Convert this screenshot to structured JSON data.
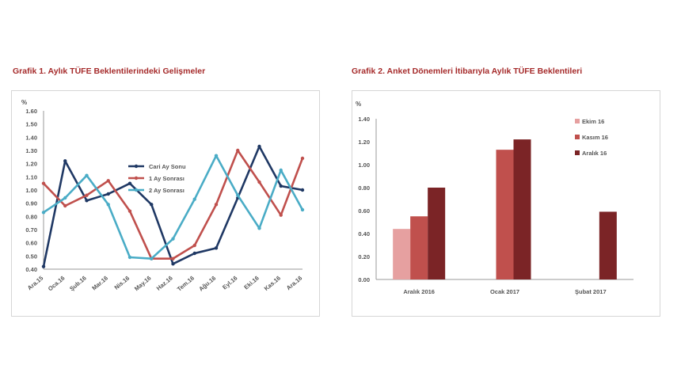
{
  "chart_data": [
    {
      "type": "line",
      "title": "Grafik 1. Aylık TÜFE Beklentilerindeki Gelişmeler",
      "ylabel": "%",
      "ylim": [
        0.4,
        1.6
      ],
      "yticks": [
        "0.40",
        "0.50",
        "0.60",
        "0.70",
        "0.80",
        "0.90",
        "1.00",
        "1.10",
        "1.20",
        "1.30",
        "1.40",
        "1.50",
        "1.60"
      ],
      "categories": [
        "Ara.15",
        "Oca.16",
        "Şub.16",
        "Mar.16",
        "Nis.16",
        "May.16",
        "Haz.16",
        "Tem.16",
        "Ağu.16",
        "Eyl.16",
        "Eki.16",
        "Kas.16",
        "Ara.16"
      ],
      "legend_position": "top-center",
      "series": [
        {
          "name": "Cari Ay Sonu",
          "color": "#1f3864",
          "values": [
            0.42,
            1.22,
            0.92,
            0.97,
            1.05,
            0.89,
            0.44,
            0.52,
            0.56,
            0.94,
            1.33,
            1.03,
            1.0
          ]
        },
        {
          "name": "1 Ay Sonrası",
          "color": "#c0504d",
          "values": [
            1.05,
            0.88,
            0.96,
            1.07,
            0.84,
            0.48,
            0.48,
            0.58,
            0.89,
            1.3,
            1.06,
            0.81,
            1.24
          ]
        },
        {
          "name": "2 Ay Sonrası",
          "color": "#4aacc6",
          "values": [
            0.83,
            0.94,
            1.11,
            0.89,
            0.49,
            0.48,
            0.63,
            0.93,
            1.26,
            0.96,
            0.71,
            1.15,
            0.85
          ]
        }
      ]
    },
    {
      "type": "bar",
      "title": "Grafik 2. Anket Dönemleri İtibarıyla Aylık TÜFE Beklentileri",
      "ylabel": "%",
      "ylim": [
        0.0,
        1.4
      ],
      "yticks": [
        "0.00",
        "0.20",
        "0.40",
        "0.60",
        "0.80",
        "1.00",
        "1.20",
        "1.40"
      ],
      "categories": [
        "Aralık 2016",
        "Ocak 2017",
        "Şubat 2017"
      ],
      "legend_position": "top-right",
      "series": [
        {
          "name": "Ekim 16",
          "color": "#e6a0a0",
          "values": [
            0.44,
            null,
            null
          ]
        },
        {
          "name": "Kasım 16",
          "color": "#c0504d",
          "values": [
            0.55,
            1.13,
            null
          ]
        },
        {
          "name": "Aralık 16",
          "color": "#7b2426",
          "values": [
            0.8,
            1.22,
            0.59
          ]
        }
      ]
    }
  ]
}
